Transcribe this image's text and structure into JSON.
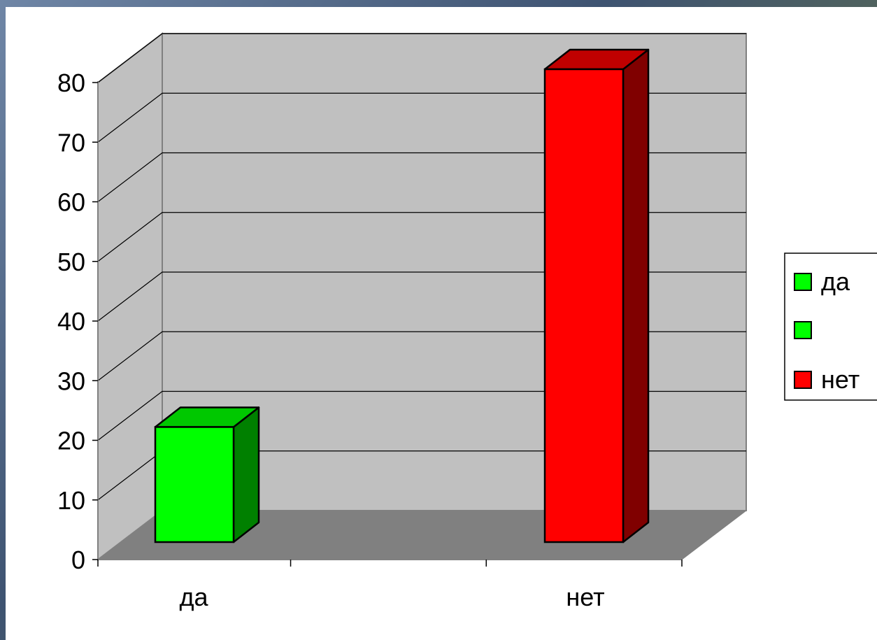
{
  "chart_data": {
    "type": "bar",
    "categories": [
      "да",
      "нет"
    ],
    "series": [
      {
        "name": "да",
        "color": "#00ff00",
        "values": [
          20,
          null
        ]
      },
      {
        "name": "",
        "color": "#00ff00",
        "values": [
          null,
          null
        ]
      },
      {
        "name": "нет",
        "color": "#ff0000",
        "values": [
          null,
          80
        ]
      }
    ],
    "title": "",
    "xlabel": "",
    "ylabel": "",
    "ylim": [
      0,
      80
    ],
    "yticks": [
      0,
      10,
      20,
      30,
      40,
      50,
      60,
      70,
      80
    ],
    "grid": true,
    "three_d": true,
    "legend": "right",
    "colors": {
      "wall": "#c0c0c0",
      "floor": "#808080",
      "bar_green_front": "#00ff00",
      "bar_green_top": "#00c800",
      "bar_green_side": "#008000",
      "bar_red_front": "#ff0000",
      "bar_red_top": "#c00000",
      "bar_red_side": "#800000"
    }
  }
}
